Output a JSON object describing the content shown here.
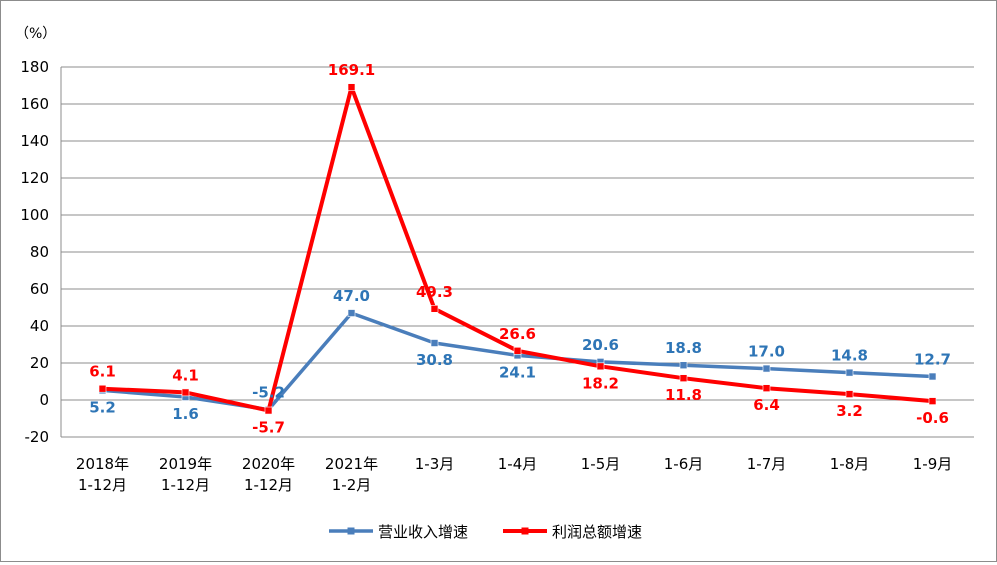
{
  "chart_data": {
    "type": "line",
    "unit_label": "（%）",
    "ylim": [
      -20,
      180
    ],
    "yticks": [
      -20,
      0,
      20,
      40,
      60,
      80,
      100,
      120,
      140,
      160,
      180
    ],
    "grid": true,
    "legend_position": "bottom",
    "categories": [
      [
        "2018年",
        "1-12月"
      ],
      [
        "2019年",
        "1-12月"
      ],
      [
        "2020年",
        "1-12月"
      ],
      [
        "2021年",
        "1-2月"
      ],
      [
        "1-3月"
      ],
      [
        "1-4月"
      ],
      [
        "1-5月"
      ],
      [
        "1-6月"
      ],
      [
        "1-7月"
      ],
      [
        "1-8月"
      ],
      [
        "1-9月"
      ]
    ],
    "series": [
      {
        "name": "营业收入增速",
        "color": "#4a7ebb",
        "label_color": "#2e75b6",
        "values": [
          5.2,
          1.6,
          -5.2,
          47.0,
          30.8,
          24.1,
          20.6,
          18.8,
          17.0,
          14.8,
          12.7
        ],
        "labels": [
          "5.2",
          "1.6",
          "-5.2",
          "47.0",
          "30.8",
          "24.1",
          "20.6",
          "18.8",
          "17.0",
          "14.8",
          "12.7"
        ],
        "label_side": [
          "below",
          "below",
          "above",
          "above",
          "below",
          "below",
          "above",
          "above",
          "above",
          "above",
          "above"
        ]
      },
      {
        "name": "利润总额增速",
        "color": "#ff0000",
        "label_color": "#ff0000",
        "values": [
          6.1,
          4.1,
          -5.7,
          169.1,
          49.3,
          26.6,
          18.2,
          11.8,
          6.4,
          3.2,
          -0.6
        ],
        "labels": [
          "6.1",
          "4.1",
          "-5.7",
          "169.1",
          "49.3",
          "26.6",
          "18.2",
          "11.8",
          "6.4",
          "3.2",
          "-0.6"
        ],
        "label_side": [
          "above",
          "above",
          "below",
          "above",
          "above",
          "above",
          "below",
          "below",
          "below",
          "below",
          "below"
        ]
      }
    ]
  }
}
